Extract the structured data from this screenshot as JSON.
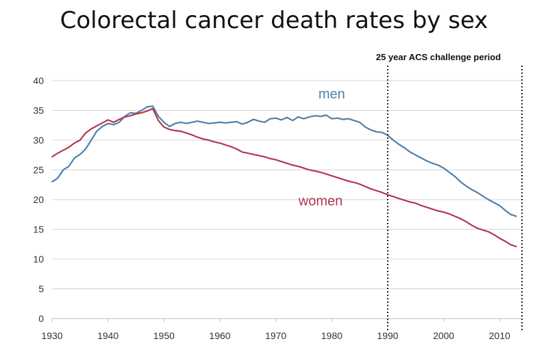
{
  "chart_data": {
    "type": "line",
    "title": "Colorectal cancer death rates by sex",
    "xlabel": "",
    "ylabel": "",
    "xlim": [
      1930,
      2014
    ],
    "ylim": [
      0,
      40
    ],
    "x_ticks": [
      1930,
      1940,
      1950,
      1960,
      1970,
      1980,
      1990,
      2000,
      2010
    ],
    "y_ticks": [
      0,
      5,
      10,
      15,
      20,
      25,
      30,
      35,
      40
    ],
    "grid": true,
    "legend": "inline labels",
    "annotations": [
      {
        "text": "25 year ACS challenge period",
        "x_start": 1990,
        "x_end": 2014,
        "style": "dotted vertical lines"
      }
    ],
    "series": [
      {
        "name": "men",
        "color": "#4f7fa8",
        "x": [
          1930,
          1931,
          1932,
          1933,
          1934,
          1935,
          1936,
          1937,
          1938,
          1939,
          1940,
          1941,
          1942,
          1943,
          1944,
          1945,
          1946,
          1947,
          1948,
          1949,
          1950,
          1951,
          1952,
          1953,
          1954,
          1955,
          1956,
          1957,
          1958,
          1959,
          1960,
          1961,
          1962,
          1963,
          1964,
          1965,
          1966,
          1967,
          1968,
          1969,
          1970,
          1971,
          1972,
          1973,
          1974,
          1975,
          1976,
          1977,
          1978,
          1979,
          1980,
          1981,
          1982,
          1983,
          1984,
          1985,
          1986,
          1987,
          1988,
          1989,
          1990,
          1991,
          1992,
          1993,
          1994,
          1995,
          1996,
          1997,
          1998,
          1999,
          2000,
          2001,
          2002,
          2003,
          2004,
          2005,
          2006,
          2007,
          2008,
          2009,
          2010,
          2011,
          2012,
          2013
        ],
        "values": [
          23.0,
          23.6,
          25.0,
          25.6,
          27.0,
          27.6,
          28.5,
          30.0,
          31.5,
          32.3,
          32.8,
          32.6,
          33.0,
          34.0,
          34.6,
          34.5,
          35.0,
          35.6,
          35.7,
          34.0,
          33.0,
          32.3,
          32.8,
          33.0,
          32.8,
          33.0,
          33.2,
          33.0,
          32.8,
          32.9,
          33.0,
          32.9,
          33.0,
          33.1,
          32.7,
          33.0,
          33.5,
          33.2,
          33.0,
          33.6,
          33.7,
          33.4,
          33.8,
          33.3,
          33.9,
          33.6,
          33.9,
          34.1,
          34.0,
          34.2,
          33.6,
          33.7,
          33.5,
          33.6,
          33.3,
          33.0,
          32.2,
          31.7,
          31.4,
          31.3,
          30.8,
          30.0,
          29.3,
          28.7,
          28.0,
          27.5,
          27.0,
          26.5,
          26.1,
          25.8,
          25.3,
          24.6,
          23.9,
          23.0,
          22.3,
          21.7,
          21.2,
          20.6,
          20.0,
          19.5,
          19.0,
          18.2,
          17.5,
          17.2
        ]
      },
      {
        "name": "women",
        "color": "#b0394e",
        "x": [
          1930,
          1931,
          1932,
          1933,
          1934,
          1935,
          1936,
          1937,
          1938,
          1939,
          1940,
          1941,
          1942,
          1943,
          1944,
          1945,
          1946,
          1947,
          1948,
          1949,
          1950,
          1951,
          1952,
          1953,
          1954,
          1955,
          1956,
          1957,
          1958,
          1959,
          1960,
          1961,
          1962,
          1963,
          1964,
          1965,
          1966,
          1967,
          1968,
          1969,
          1970,
          1971,
          1972,
          1973,
          1974,
          1975,
          1976,
          1977,
          1978,
          1979,
          1980,
          1981,
          1982,
          1983,
          1984,
          1985,
          1986,
          1987,
          1988,
          1989,
          1990,
          1991,
          1992,
          1993,
          1994,
          1995,
          1996,
          1997,
          1998,
          1999,
          2000,
          2001,
          2002,
          2003,
          2004,
          2005,
          2006,
          2007,
          2008,
          2009,
          2010,
          2011,
          2012,
          2013
        ],
        "values": [
          27.2,
          27.8,
          28.3,
          28.8,
          29.5,
          30.0,
          31.2,
          31.9,
          32.4,
          32.9,
          33.4,
          33.0,
          33.5,
          33.9,
          34.1,
          34.4,
          34.6,
          34.9,
          35.3,
          33.3,
          32.2,
          31.8,
          31.6,
          31.5,
          31.2,
          30.9,
          30.5,
          30.2,
          30.0,
          29.7,
          29.5,
          29.2,
          28.9,
          28.5,
          28.0,
          27.8,
          27.6,
          27.4,
          27.2,
          26.9,
          26.7,
          26.4,
          26.1,
          25.8,
          25.6,
          25.3,
          25.0,
          24.8,
          24.6,
          24.3,
          24.0,
          23.7,
          23.4,
          23.1,
          22.9,
          22.6,
          22.2,
          21.8,
          21.5,
          21.2,
          20.8,
          20.5,
          20.2,
          19.9,
          19.6,
          19.4,
          19.0,
          18.7,
          18.4,
          18.1,
          17.9,
          17.6,
          17.2,
          16.8,
          16.3,
          15.7,
          15.2,
          14.9,
          14.6,
          14.1,
          13.5,
          13.0,
          12.4,
          12.1
        ]
      }
    ]
  }
}
